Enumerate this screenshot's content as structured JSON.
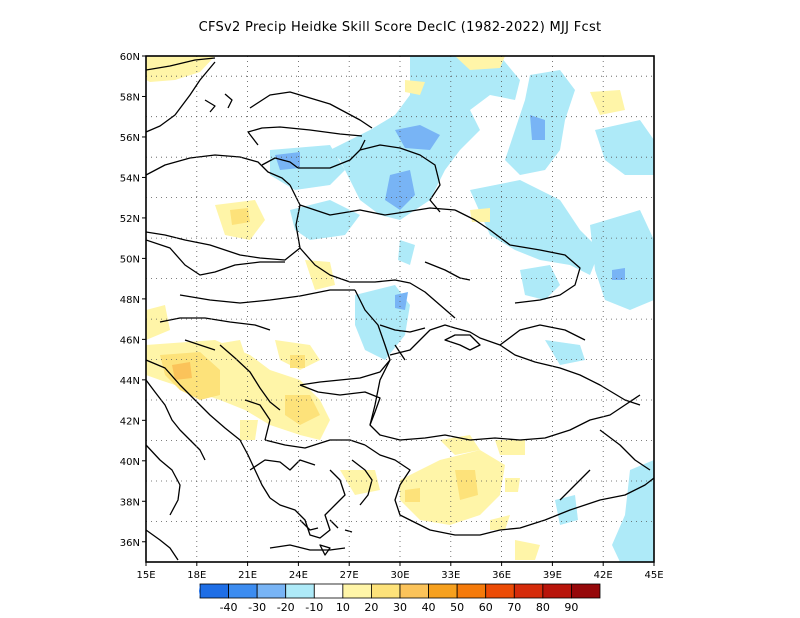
{
  "title": "CFSv2 Precip Heidke Skill Score DecIC (1982-2022) MJJ Fcst",
  "map": {
    "lon_range": [
      15,
      45
    ],
    "lat_range": [
      35,
      60
    ],
    "lat_labels": [
      "60N",
      "58N",
      "56N",
      "54N",
      "52N",
      "50N",
      "48N",
      "46N",
      "44N",
      "42N",
      "40N",
      "38N",
      "36N"
    ],
    "lon_labels": [
      "15E",
      "18E",
      "21E",
      "24E",
      "27E",
      "30E",
      "33E",
      "36E",
      "39E",
      "42E",
      "45E"
    ],
    "lat_values": [
      60,
      58,
      56,
      54,
      52,
      50,
      48,
      46,
      44,
      42,
      40,
      38,
      36
    ],
    "lon_values": [
      15,
      18,
      21,
      24,
      27,
      30,
      33,
      36,
      39,
      42,
      45
    ]
  },
  "colorbar": {
    "colors": [
      "#1e6ee6",
      "#3c8cf0",
      "#78b4f5",
      "#aeeaf8",
      "#ffffff",
      "#fff5a8",
      "#fde27a",
      "#fbc35a",
      "#f6a01e",
      "#f57a0a",
      "#ec4b05",
      "#d52b0a",
      "#b8140a",
      "#96080a"
    ],
    "labels": [
      "-40",
      "-30",
      "-20",
      "-10",
      "10",
      "20",
      "30",
      "40",
      "50",
      "60",
      "70",
      "80",
      "90"
    ]
  }
}
